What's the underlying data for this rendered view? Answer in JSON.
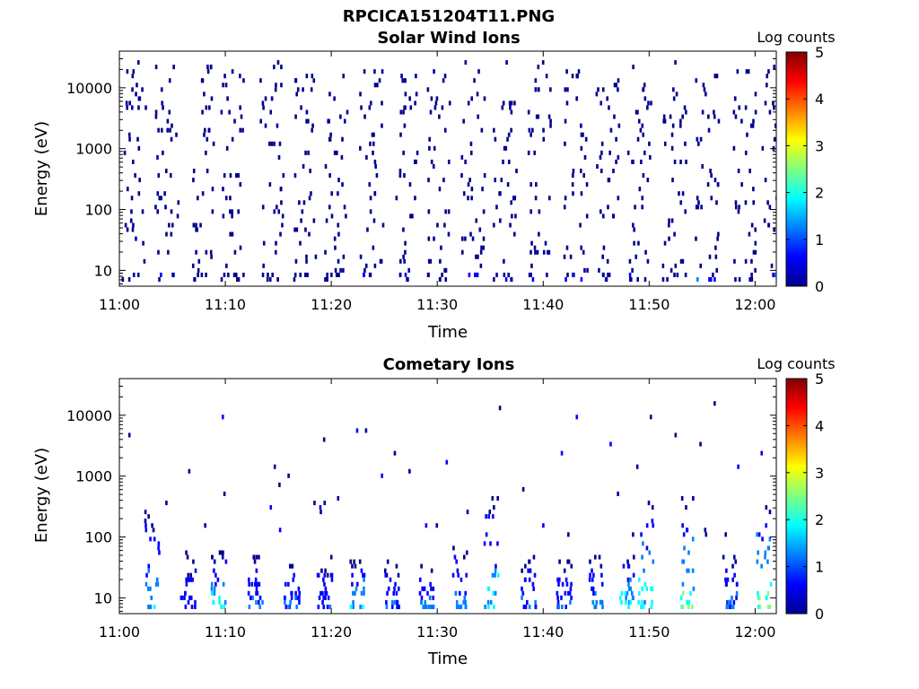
{
  "figure_title": "RPCICA151204T11.PNG",
  "colormap": [
    "#00008f",
    "#0000ff",
    "#0080ff",
    "#00ffff",
    "#80ff80",
    "#ffff00",
    "#ff8000",
    "#ff0000",
    "#800000"
  ],
  "chart_data": [
    {
      "type": "heatmap",
      "title": "Solar Wind Ions",
      "xlabel": "Time",
      "ylabel": "Energy (eV)",
      "xlim": [
        "11:00",
        "12:02"
      ],
      "x_ticks": [
        "11:00",
        "11:10",
        "11:20",
        "11:30",
        "11:40",
        "11:50",
        "12:00"
      ],
      "ylim": [
        5.5,
        40000
      ],
      "y_scale": "log",
      "y_ticks": [
        "10",
        "100",
        "1000",
        "10000"
      ],
      "colorbar": {
        "label": "Log counts",
        "range": [
          0,
          5
        ],
        "ticks": [
          "0",
          "1",
          "2",
          "3",
          "4",
          "5"
        ]
      },
      "sweep_minutes": [
        0.2,
        3.3,
        6.8,
        9.5,
        13.2,
        16.4,
        19.3,
        22.6,
        25.9,
        29.0,
        32.2,
        35.2,
        38.5,
        41.9,
        44.9,
        47.9,
        51.2,
        54.3,
        57.8,
        60.6
      ],
      "sweep_peak_log_counts": [
        0.3,
        0.4,
        0.4,
        0.4,
        0.3,
        0.4,
        0.4,
        0.4,
        0.4,
        0.4,
        0.5,
        0.4,
        0.4,
        0.5,
        0.4,
        0.4,
        0.4,
        1.5,
        0.4,
        1.6
      ],
      "energy_range_eV": [
        7,
        25000
      ]
    },
    {
      "type": "heatmap",
      "title": "Cometary Ions",
      "xlabel": "Time",
      "ylabel": "Energy (eV)",
      "xlim": [
        "11:00",
        "12:02"
      ],
      "x_ticks": [
        "11:00",
        "11:10",
        "11:20",
        "11:30",
        "11:40",
        "11:50",
        "12:00"
      ],
      "ylim": [
        5.5,
        40000
      ],
      "y_scale": "log",
      "y_ticks": [
        "10",
        "100",
        "1000",
        "10000"
      ],
      "colorbar": {
        "label": "Log counts",
        "range": [
          0,
          5
        ],
        "ticks": [
          "0",
          "1",
          "2",
          "3",
          "4",
          "5"
        ]
      },
      "bursts": [
        {
          "minute": 3.0,
          "peak_log_counts": 1.8,
          "max_energy_eV": 300
        },
        {
          "minute": 6.4,
          "peak_log_counts": 1.0,
          "max_energy_eV": 60
        },
        {
          "minute": 9.3,
          "peak_log_counts": 2.1,
          "max_energy_eV": 60
        },
        {
          "minute": 12.7,
          "peak_log_counts": 1.3,
          "max_energy_eV": 50
        },
        {
          "minute": 16.2,
          "peak_log_counts": 1.2,
          "max_energy_eV": 50
        },
        {
          "minute": 19.3,
          "peak_log_counts": 1.1,
          "max_energy_eV": 50
        },
        {
          "minute": 22.4,
          "peak_log_counts": 1.9,
          "max_energy_eV": 50
        },
        {
          "minute": 25.6,
          "peak_log_counts": 1.2,
          "max_energy_eV": 40
        },
        {
          "minute": 28.9,
          "peak_log_counts": 1.4,
          "max_energy_eV": 45
        },
        {
          "minute": 32.0,
          "peak_log_counts": 1.6,
          "max_energy_eV": 80
        },
        {
          "minute": 35.0,
          "peak_log_counts": 2.3,
          "max_energy_eV": 600
        },
        {
          "minute": 38.5,
          "peak_log_counts": 1.3,
          "max_energy_eV": 50
        },
        {
          "minute": 41.9,
          "peak_log_counts": 1.1,
          "max_energy_eV": 45
        },
        {
          "minute": 44.9,
          "peak_log_counts": 1.4,
          "max_energy_eV": 50
        },
        {
          "minute": 47.8,
          "peak_log_counts": 2.4,
          "max_energy_eV": 50
        },
        {
          "minute": 49.6,
          "peak_log_counts": 2.6,
          "max_energy_eV": 600
        },
        {
          "minute": 53.6,
          "peak_log_counts": 2.6,
          "max_energy_eV": 700
        },
        {
          "minute": 57.6,
          "peak_log_counts": 1.5,
          "max_energy_eV": 50
        },
        {
          "minute": 60.7,
          "peak_log_counts": 2.9,
          "max_energy_eV": 400
        }
      ]
    }
  ]
}
